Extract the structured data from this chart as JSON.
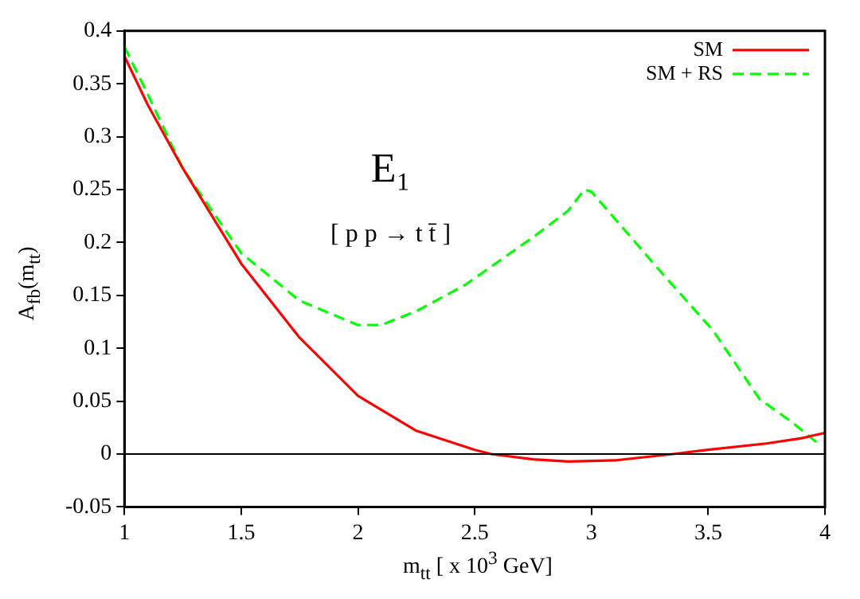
{
  "chart_data": {
    "type": "line",
    "xlabel": "m$_{tt}$ [ x 10$^{3}$ GeV]",
    "ylabel": "A$_{fb}$(m$_{tt}$)",
    "annotations": [
      "E₁",
      "[ p p → t t̄ ]"
    ],
    "xlim": [
      1,
      4
    ],
    "xticks": [
      1,
      1.5,
      2,
      2.5,
      3,
      3.5,
      4
    ],
    "ylim": [
      -0.05,
      0.4
    ],
    "yticks": [
      -0.05,
      0,
      0.05,
      0.1,
      0.15,
      0.2,
      0.25,
      0.3,
      0.35,
      0.4
    ],
    "grid": false,
    "legend": "top right",
    "marker": "none",
    "ref_lines": [
      {
        "axis": "y",
        "value": 0,
        "color": "#000000"
      }
    ],
    "series": [
      {
        "name": "SM",
        "color": "#ff0000",
        "line_style": "solid",
        "x": [
          1,
          1.1,
          1.25,
          1.5,
          1.75,
          2,
          2.25,
          2.5,
          2.57,
          2.75,
          2.9,
          3.1,
          3.35,
          3.5,
          3.75,
          3.9,
          4
        ],
        "values": [
          0.376,
          0.33,
          0.27,
          0.18,
          0.11,
          0.055,
          0.022,
          0.004,
          0,
          -0.005,
          -0.007,
          -0.006,
          0,
          0.004,
          0.01,
          0.015,
          0.02
        ]
      },
      {
        "name": "SM + RS",
        "color": "#00ff00",
        "line_style": "dashed",
        "x": [
          1,
          1.1,
          1.25,
          1.5,
          1.75,
          2,
          2.1,
          2.25,
          2.46,
          2.75,
          2.9,
          2.97,
          3,
          3.11,
          3.31,
          3.52,
          3.72,
          3.86,
          3.97
        ],
        "values": [
          0.385,
          0.34,
          0.27,
          0.19,
          0.145,
          0.122,
          0.122,
          0.135,
          0.16,
          0.205,
          0.23,
          0.25,
          0.248,
          0.22,
          0.169,
          0.117,
          0.052,
          0.03,
          0.01
        ]
      }
    ]
  }
}
